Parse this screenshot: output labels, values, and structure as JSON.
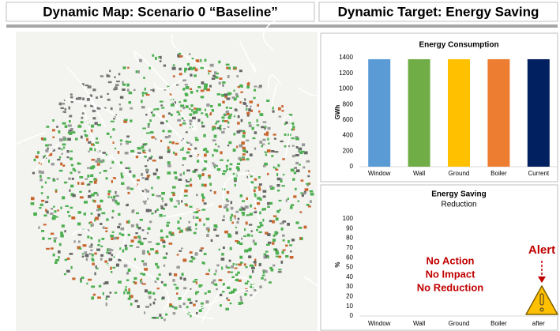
{
  "headers": [
    "Dynamic Map: Scenario 0 “Baseline”",
    "Dynamic Target: Energy Saving"
  ],
  "chart_data": [
    {
      "type": "bar",
      "title": "Energy Consumption",
      "y_label": "GWh",
      "categories": [
        "Window",
        "Wall",
        "Ground",
        "Boiler",
        "Current"
      ],
      "values": [
        1380,
        1380,
        1380,
        1380,
        1380
      ],
      "colors": [
        "#5b9bd5",
        "#70ad47",
        "#ffc000",
        "#ed7d31",
        "#002060"
      ],
      "ylim": [
        0,
        1400
      ],
      "yticks": [
        0,
        200,
        400,
        600,
        800,
        1000,
        1200,
        1400
      ]
    },
    {
      "type": "bar",
      "title": "Energy Saving",
      "subtitle": "Reduction",
      "y_label": "%",
      "categories": [
        "Window",
        "Wall",
        "Ground",
        "Boiler",
        "after"
      ],
      "values": [
        0,
        0,
        0,
        0,
        0
      ],
      "ylim": [
        0,
        100
      ],
      "yticks": [
        0,
        10,
        20,
        30,
        40,
        50,
        60,
        70,
        80,
        90,
        100
      ],
      "annotations": [
        "No Action",
        "No Impact",
        "No Reduction"
      ],
      "alert": "Alert"
    }
  ]
}
